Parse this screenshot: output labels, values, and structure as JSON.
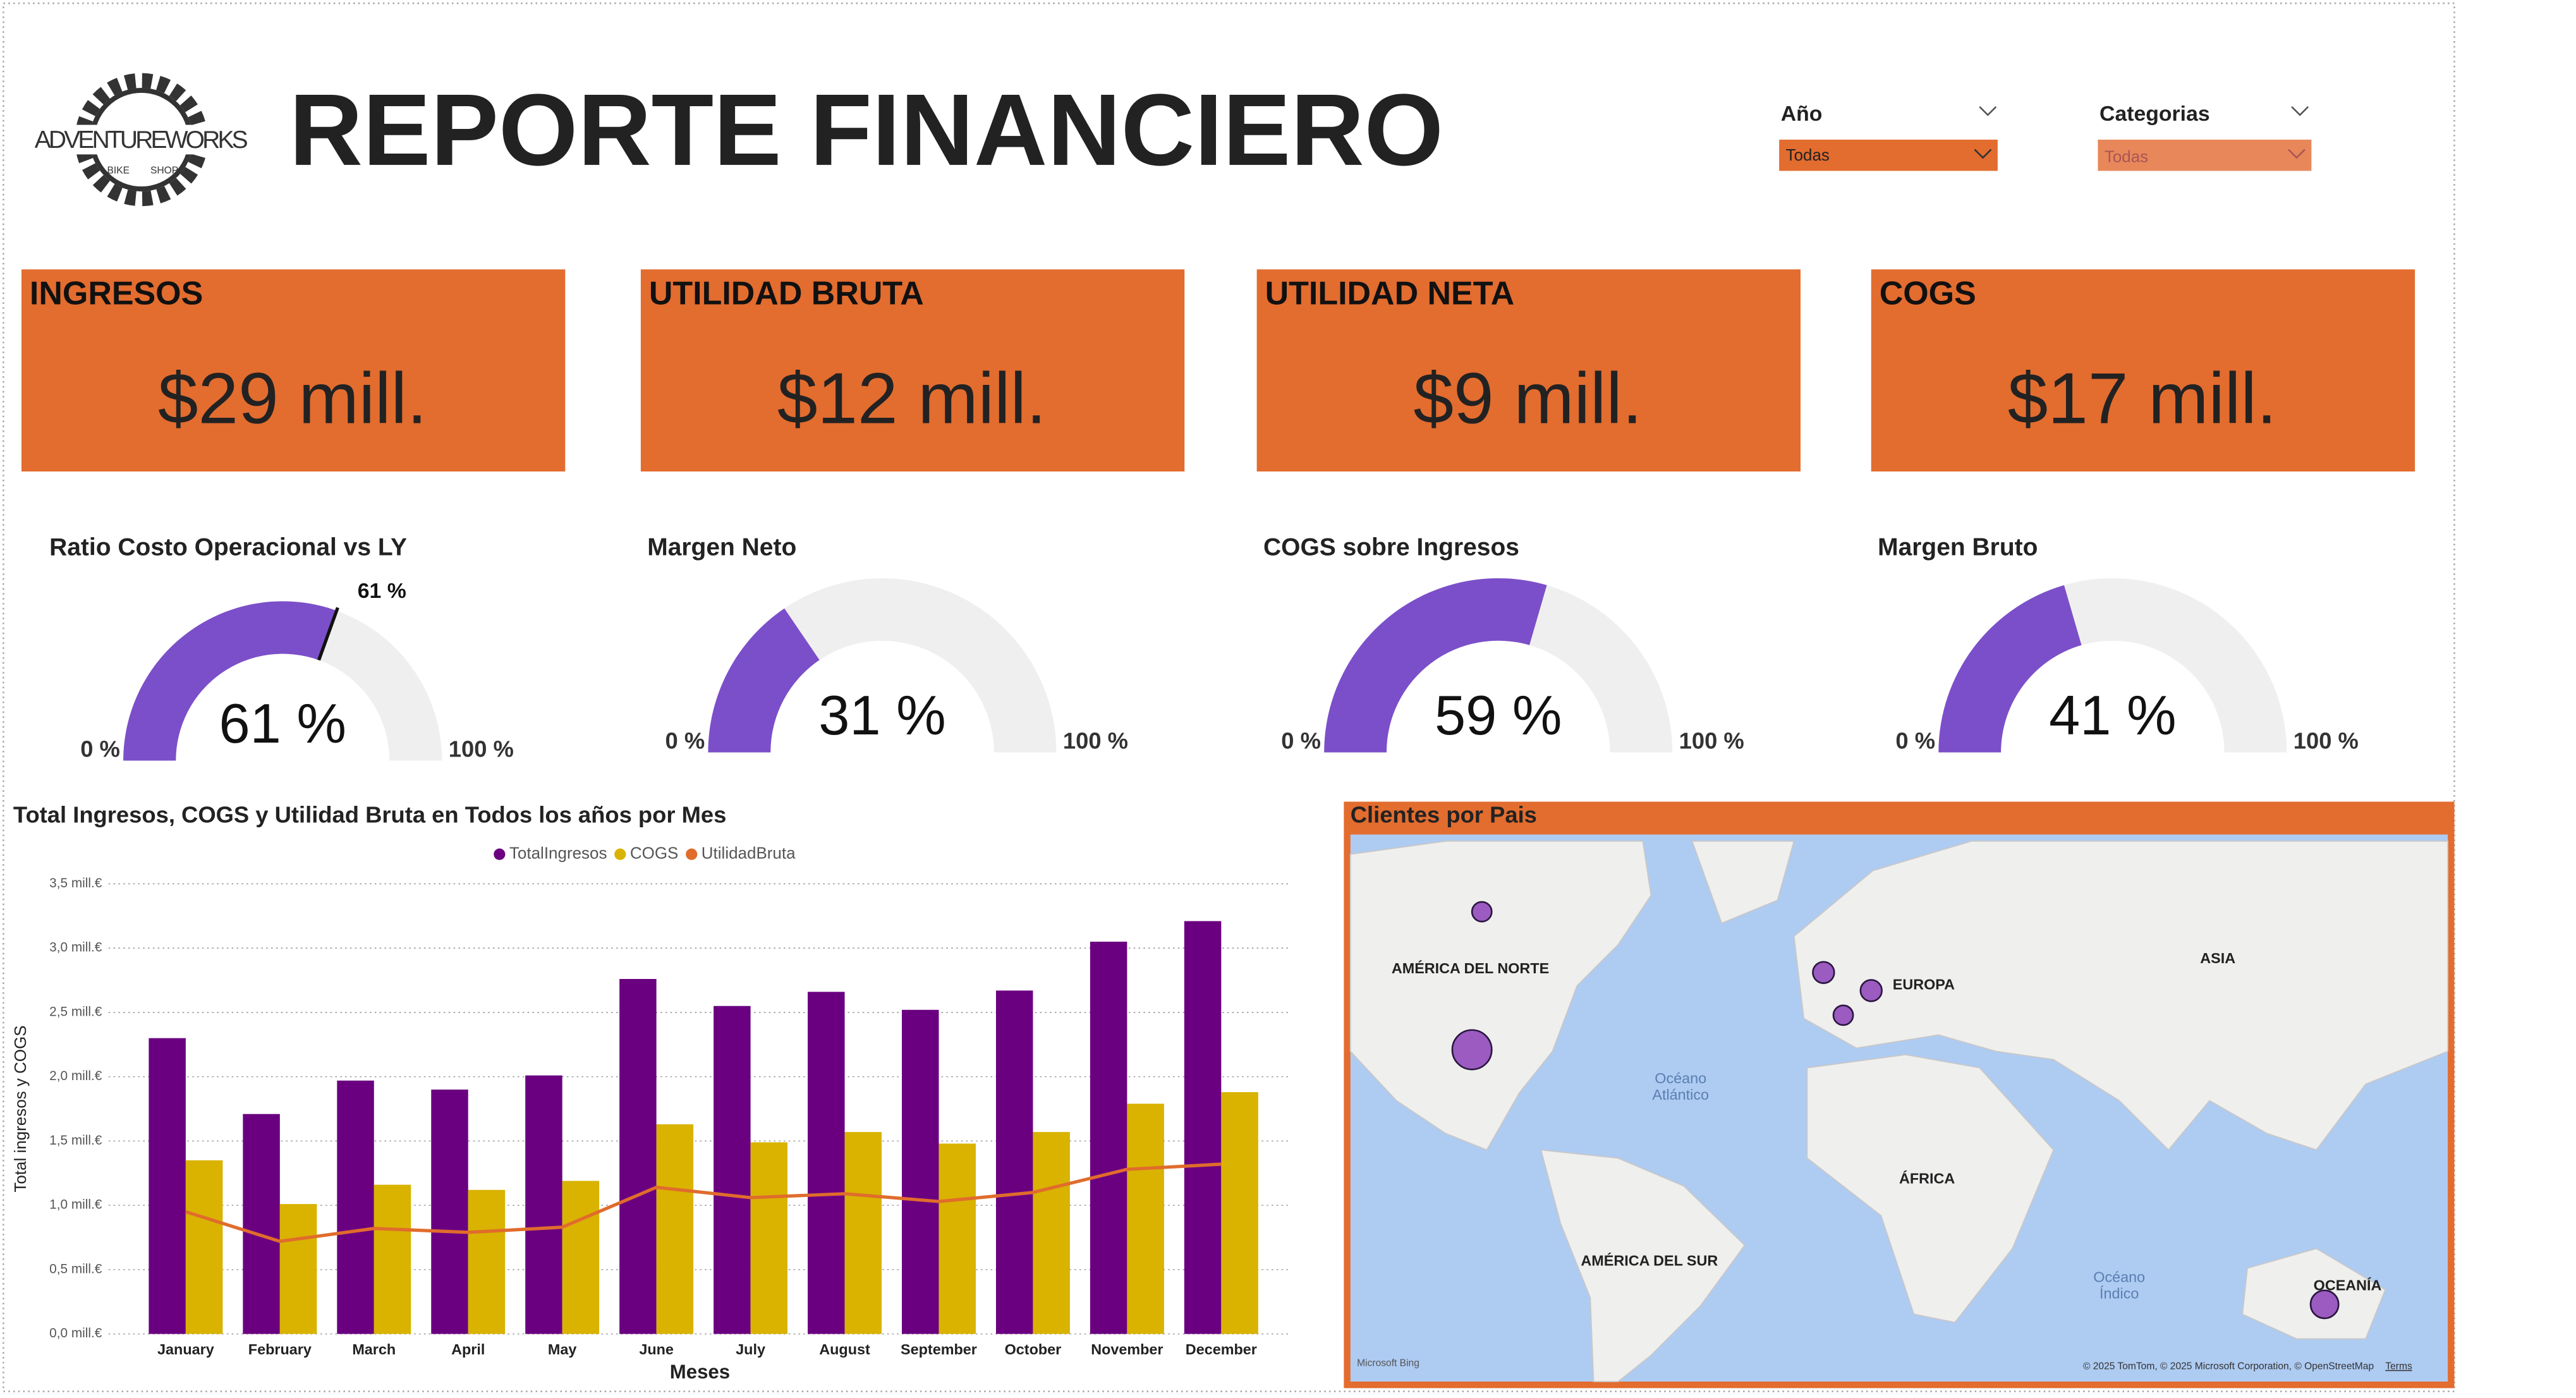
{
  "header": {
    "title": "REPORTE FINANCIERO",
    "logo": {
      "brand": "ADVENTUREWORKS",
      "left": "BIKE",
      "right": "SHOP"
    }
  },
  "filters": [
    {
      "label": "Año",
      "value": "Todas"
    },
    {
      "label": "Categorias",
      "value": "Todas"
    }
  ],
  "kpis": [
    {
      "title": "INGRESOS",
      "value": "$29 mill."
    },
    {
      "title": "UTILIDAD BRUTA",
      "value": "$12 mill."
    },
    {
      "title": "UTILIDAD NETA",
      "value": "$9 mill."
    },
    {
      "title": "COGS",
      "value": "$17 mill."
    }
  ],
  "gauges": [
    {
      "title": "Ratio Costo Operacional vs LY",
      "value": 61,
      "value_label": "61 %",
      "min": 0,
      "min_label": "0 %",
      "max": 100,
      "max_label": "100 %",
      "target": 61,
      "target_label": "61 %"
    },
    {
      "title": "Margen Neto",
      "value": 31,
      "value_label": "31 %",
      "min": 0,
      "min_label": "0 %",
      "max": 100,
      "max_label": "100 %"
    },
    {
      "title": "COGS sobre Ingresos",
      "value": 59,
      "value_label": "59 %",
      "min": 0,
      "min_label": "0 %",
      "max": 100,
      "max_label": "100 %"
    },
    {
      "title": "Margen Bruto",
      "value": 41,
      "value_label": "41 %",
      "min": 0,
      "min_label": "0 %",
      "max": 100,
      "max_label": "100 %"
    }
  ],
  "chart_data": {
    "type": "bar",
    "title": "Total Ingresos, COGS y Utilidad Bruta en Todos los años por Mes",
    "x_label": "Meses",
    "y_label": "Total ingresos y COGS",
    "categories": [
      "January",
      "February",
      "March",
      "April",
      "May",
      "June",
      "July",
      "August",
      "September",
      "October",
      "November",
      "December"
    ],
    "series": [
      {
        "name": "TotalIngresos",
        "color": "#6a0080",
        "kind": "bar",
        "values": [
          2.3,
          1.71,
          1.97,
          1.9,
          2.01,
          2.76,
          2.55,
          2.66,
          2.52,
          2.67,
          3.05,
          3.21
        ]
      },
      {
        "name": "COGS",
        "color": "#d9b300",
        "kind": "bar",
        "values": [
          1.35,
          1.01,
          1.16,
          1.12,
          1.19,
          1.63,
          1.49,
          1.57,
          1.48,
          1.57,
          1.79,
          1.88
        ]
      },
      {
        "name": "UtilidadBruta",
        "color": "#e06c2c",
        "kind": "line",
        "values": [
          0.95,
          0.72,
          0.82,
          0.79,
          0.83,
          1.14,
          1.06,
          1.09,
          1.03,
          1.1,
          1.28,
          1.32
        ]
      }
    ],
    "ylim": [
      0,
      3.5
    ],
    "yticks": [
      {
        "value": 0,
        "label": "0,0 mill.€"
      },
      {
        "value": 0.5,
        "label": "0,5 mill.€"
      },
      {
        "value": 1,
        "label": "1,0 mill.€"
      },
      {
        "value": 1.5,
        "label": "1,5 mill.€"
      },
      {
        "value": 2,
        "label": "2,0 mill.€"
      },
      {
        "value": 2.5,
        "label": "2,5 mill.€"
      },
      {
        "value": 3,
        "label": "3,0 mill.€"
      },
      {
        "value": 3.5,
        "label": "3,5 mill.€"
      }
    ],
    "grid": true,
    "legend": "top"
  },
  "map": {
    "title": "Clientes por Pais",
    "regions": [
      "AMÉRICA DEL NORTE",
      "EUROPA",
      "ASIA",
      "ÁFRICA",
      "AMÉRICA DEL SUR",
      "OCEANÍA"
    ],
    "oceans": [
      [
        "Océano",
        "Atlántico"
      ],
      [
        "Océano",
        "Índico"
      ]
    ],
    "provider": "Microsoft Bing",
    "attribution": "© 2025 TomTom, © 2025 Microsoft Corporation, © OpenStreetMap",
    "terms": "Terms"
  }
}
